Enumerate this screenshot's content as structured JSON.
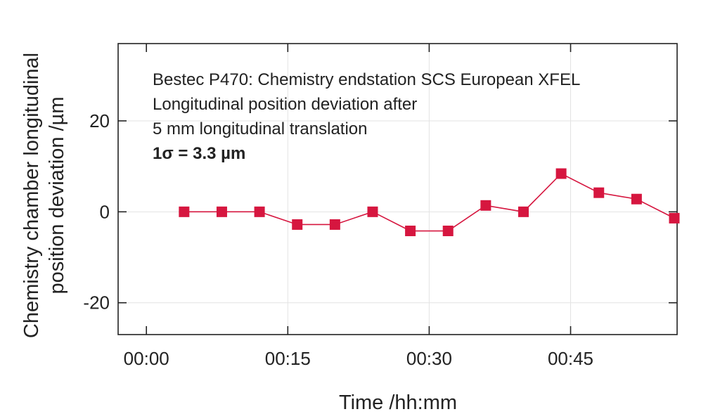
{
  "chart_data": {
    "type": "line",
    "xlabel": "Time /hh:mm",
    "ylabel_lines": [
      "Chemistry chamber longitudinal",
      "position deviation /µm"
    ],
    "x_ticks": [
      "00:00",
      "00:15",
      "00:30",
      "00:45"
    ],
    "x_tick_minutes": [
      0,
      15,
      30,
      45
    ],
    "xlim_minutes": [
      -3,
      56.3
    ],
    "y_ticks": [
      20,
      0,
      -20
    ],
    "ylim": [
      -27,
      37
    ],
    "grid": true,
    "annotations": [
      "Bestec P470: Chemistry endstation SCS European XFEL",
      "Longitudinal position deviation after",
      "5 mm longitudinal translation",
      "1σ = 3.3 µm"
    ],
    "series": [
      {
        "color": "#d6163f",
        "marker": "square",
        "x": [
          "00:04",
          "00:08",
          "00:12",
          "00:16",
          "00:20",
          "00:24",
          "00:28",
          "00:32",
          "00:36",
          "00:40",
          "00:44",
          "00:48",
          "00:52",
          "00:56"
        ],
        "x_minutes": [
          4,
          8,
          12,
          16,
          20,
          24,
          28,
          32,
          36,
          40,
          44,
          48,
          52,
          56
        ],
        "values": [
          0,
          0,
          0,
          -2.8,
          -2.8,
          0,
          -4.2,
          -4.2,
          1.4,
          0,
          8.4,
          4.2,
          2.8,
          -1.4
        ]
      }
    ]
  }
}
